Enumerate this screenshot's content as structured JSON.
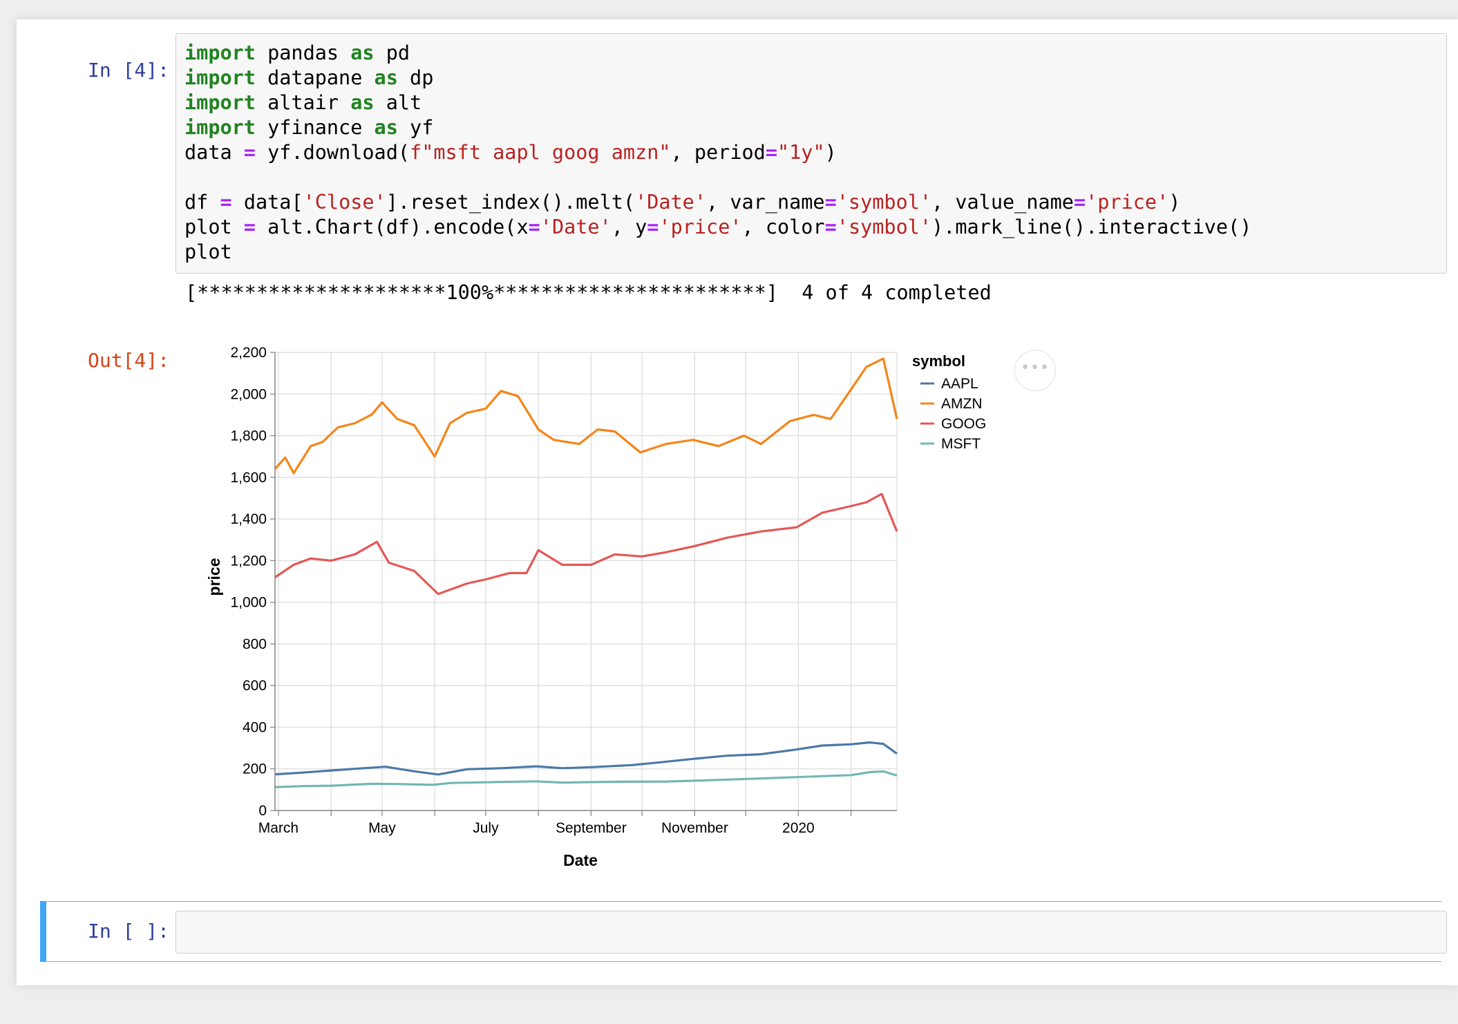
{
  "cell1": {
    "in_prompt": "In [4]:",
    "code_lines": [
      [
        {
          "t": "import",
          "c": "kw"
        },
        {
          "t": " pandas "
        },
        {
          "t": "as",
          "c": "kw"
        },
        {
          "t": " pd"
        }
      ],
      [
        {
          "t": "import",
          "c": "kw"
        },
        {
          "t": " datapane "
        },
        {
          "t": "as",
          "c": "kw"
        },
        {
          "t": " dp"
        }
      ],
      [
        {
          "t": "import",
          "c": "kw"
        },
        {
          "t": " altair "
        },
        {
          "t": "as",
          "c": "kw"
        },
        {
          "t": " alt"
        }
      ],
      [
        {
          "t": "import",
          "c": "kw"
        },
        {
          "t": " yfinance "
        },
        {
          "t": "as",
          "c": "kw"
        },
        {
          "t": " yf"
        }
      ],
      [
        {
          "t": "data "
        },
        {
          "t": "=",
          "c": "op"
        },
        {
          "t": " yf.download("
        },
        {
          "t": "f\"msft aapl goog amzn\"",
          "c": "str"
        },
        {
          "t": ", period"
        },
        {
          "t": "=",
          "c": "op"
        },
        {
          "t": "\"1y\"",
          "c": "str"
        },
        {
          "t": ")"
        }
      ],
      [],
      [
        {
          "t": "df "
        },
        {
          "t": "=",
          "c": "op"
        },
        {
          "t": " data["
        },
        {
          "t": "'Close'",
          "c": "str"
        },
        {
          "t": "].reset_index().melt("
        },
        {
          "t": "'Date'",
          "c": "str"
        },
        {
          "t": ", var_name"
        },
        {
          "t": "=",
          "c": "op"
        },
        {
          "t": "'symbol'",
          "c": "str"
        },
        {
          "t": ", value_name"
        },
        {
          "t": "=",
          "c": "op"
        },
        {
          "t": "'price'",
          "c": "str"
        },
        {
          "t": ")"
        }
      ],
      [
        {
          "t": "plot "
        },
        {
          "t": "=",
          "c": "op"
        },
        {
          "t": " alt.Chart(df).encode(x"
        },
        {
          "t": "=",
          "c": "op"
        },
        {
          "t": "'Date'",
          "c": "str"
        },
        {
          "t": ", y"
        },
        {
          "t": "=",
          "c": "op"
        },
        {
          "t": "'price'",
          "c": "str"
        },
        {
          "t": ", color"
        },
        {
          "t": "=",
          "c": "op"
        },
        {
          "t": "'symbol'",
          "c": "str"
        },
        {
          "t": ").mark_line().interactive()"
        }
      ],
      [
        {
          "t": "plot"
        }
      ]
    ],
    "stream_output": "[*********************100%***********************]  4 of 4 completed",
    "out_prompt": "Out[4]:",
    "actions_icon": "ellipsis-icon",
    "actions_label": "•••"
  },
  "cell2": {
    "in_prompt": "In [ ]:",
    "code": ""
  },
  "chart_data": {
    "type": "line",
    "title": "",
    "xlabel": "Date",
    "ylabel": "price",
    "x_ticks": [
      "March",
      "May",
      "July",
      "September",
      "November",
      "2020"
    ],
    "x_tick_dates": [
      "2019-03-01",
      "2019-05-01",
      "2019-07-01",
      "2019-09-01",
      "2019-11-01",
      "2020-01-01"
    ],
    "x_minor_dates": [
      "2019-04-01",
      "2019-06-01",
      "2019-08-01",
      "2019-10-01",
      "2019-12-01",
      "2020-02-01"
    ],
    "x_range": [
      "2019-02-27",
      "2020-02-28"
    ],
    "y_ticks": [
      "0",
      "200",
      "400",
      "600",
      "800",
      "1,000",
      "1,200",
      "1,400",
      "1,600",
      "1,800",
      "2,000",
      "2,200"
    ],
    "ylim": [
      0,
      2200
    ],
    "grid": true,
    "legend_title": "symbol",
    "legend_position": "right",
    "series": [
      {
        "name": "AAPL",
        "color": "#4c78a8",
        "points": [
          [
            "2019-02-27",
            174
          ],
          [
            "2019-03-15",
            182
          ],
          [
            "2019-04-01",
            192
          ],
          [
            "2019-04-20",
            203
          ],
          [
            "2019-05-03",
            210
          ],
          [
            "2019-05-20",
            188
          ],
          [
            "2019-06-03",
            173
          ],
          [
            "2019-06-20",
            198
          ],
          [
            "2019-07-10",
            203
          ],
          [
            "2019-07-31",
            212
          ],
          [
            "2019-08-15",
            203
          ],
          [
            "2019-09-01",
            208
          ],
          [
            "2019-09-25",
            218
          ],
          [
            "2019-10-10",
            230
          ],
          [
            "2019-10-31",
            248
          ],
          [
            "2019-11-20",
            263
          ],
          [
            "2019-12-10",
            270
          ],
          [
            "2019-12-31",
            293
          ],
          [
            "2020-01-15",
            312
          ],
          [
            "2020-02-01",
            318
          ],
          [
            "2020-02-12",
            327
          ],
          [
            "2020-02-20",
            320
          ],
          [
            "2020-02-28",
            273
          ]
        ]
      },
      {
        "name": "AMZN",
        "color": "#f58518",
        "points": [
          [
            "2019-02-27",
            1640
          ],
          [
            "2019-03-05",
            1695
          ],
          [
            "2019-03-10",
            1620
          ],
          [
            "2019-03-20",
            1750
          ],
          [
            "2019-03-27",
            1770
          ],
          [
            "2019-04-05",
            1840
          ],
          [
            "2019-04-15",
            1860
          ],
          [
            "2019-04-25",
            1902
          ],
          [
            "2019-05-01",
            1960
          ],
          [
            "2019-05-10",
            1880
          ],
          [
            "2019-05-20",
            1850
          ],
          [
            "2019-06-01",
            1700
          ],
          [
            "2019-06-10",
            1860
          ],
          [
            "2019-06-20",
            1910
          ],
          [
            "2019-07-01",
            1930
          ],
          [
            "2019-07-10",
            2015
          ],
          [
            "2019-07-20",
            1990
          ],
          [
            "2019-08-01",
            1830
          ],
          [
            "2019-08-10",
            1780
          ],
          [
            "2019-08-25",
            1760
          ],
          [
            "2019-09-05",
            1830
          ],
          [
            "2019-09-15",
            1820
          ],
          [
            "2019-09-30",
            1720
          ],
          [
            "2019-10-15",
            1760
          ],
          [
            "2019-10-31",
            1780
          ],
          [
            "2019-11-15",
            1750
          ],
          [
            "2019-11-30",
            1800
          ],
          [
            "2019-12-10",
            1760
          ],
          [
            "2019-12-27",
            1870
          ],
          [
            "2020-01-10",
            1900
          ],
          [
            "2020-01-20",
            1880
          ],
          [
            "2020-01-31",
            2010
          ],
          [
            "2020-02-10",
            2130
          ],
          [
            "2020-02-20",
            2170
          ],
          [
            "2020-02-28",
            1880
          ]
        ]
      },
      {
        "name": "GOOG",
        "color": "#e45756",
        "points": [
          [
            "2019-02-27",
            1120
          ],
          [
            "2019-03-10",
            1180
          ],
          [
            "2019-03-20",
            1210
          ],
          [
            "2019-04-01",
            1200
          ],
          [
            "2019-04-15",
            1230
          ],
          [
            "2019-04-28",
            1290
          ],
          [
            "2019-05-05",
            1190
          ],
          [
            "2019-05-20",
            1150
          ],
          [
            "2019-06-03",
            1040
          ],
          [
            "2019-06-20",
            1090
          ],
          [
            "2019-07-01",
            1110
          ],
          [
            "2019-07-15",
            1140
          ],
          [
            "2019-07-25",
            1140
          ],
          [
            "2019-08-01",
            1250
          ],
          [
            "2019-08-15",
            1180
          ],
          [
            "2019-09-01",
            1180
          ],
          [
            "2019-09-15",
            1230
          ],
          [
            "2019-10-01",
            1220
          ],
          [
            "2019-10-15",
            1240
          ],
          [
            "2019-11-01",
            1270
          ],
          [
            "2019-11-20",
            1310
          ],
          [
            "2019-12-10",
            1340
          ],
          [
            "2019-12-31",
            1360
          ],
          [
            "2020-01-15",
            1430
          ],
          [
            "2020-01-31",
            1460
          ],
          [
            "2020-02-10",
            1480
          ],
          [
            "2020-02-19",
            1520
          ],
          [
            "2020-02-28",
            1340
          ]
        ]
      },
      {
        "name": "MSFT",
        "color": "#72b7b2",
        "points": [
          [
            "2019-02-27",
            112
          ],
          [
            "2019-03-15",
            117
          ],
          [
            "2019-04-01",
            119
          ],
          [
            "2019-04-25",
            128
          ],
          [
            "2019-05-10",
            127
          ],
          [
            "2019-05-31",
            123
          ],
          [
            "2019-06-10",
            132
          ],
          [
            "2019-07-10",
            137
          ],
          [
            "2019-07-31",
            140
          ],
          [
            "2019-08-15",
            134
          ],
          [
            "2019-09-15",
            138
          ],
          [
            "2019-10-15",
            139
          ],
          [
            "2019-11-01",
            143
          ],
          [
            "2019-11-30",
            151
          ],
          [
            "2019-12-20",
            157
          ],
          [
            "2020-01-15",
            165
          ],
          [
            "2020-02-01",
            170
          ],
          [
            "2020-02-12",
            184
          ],
          [
            "2020-02-20",
            188
          ],
          [
            "2020-02-28",
            168
          ]
        ]
      }
    ]
  }
}
